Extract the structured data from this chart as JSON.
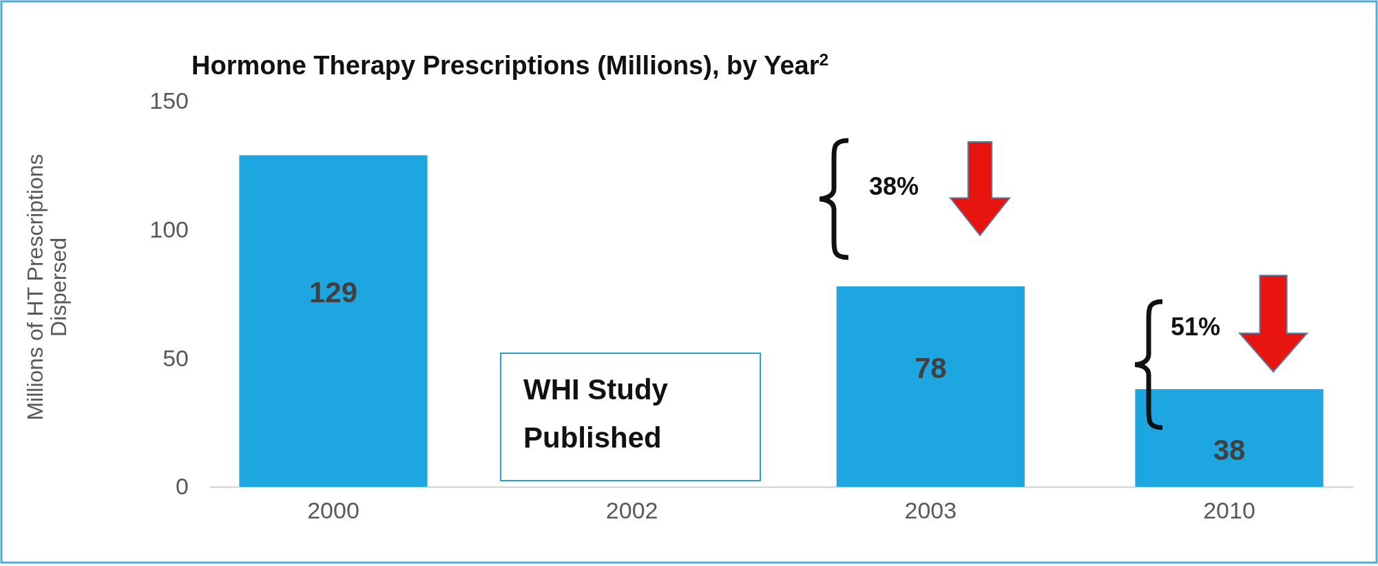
{
  "chart_data": {
    "type": "bar",
    "title": "Hormone Therapy Prescriptions (Millions), by Year$^{2}$",
    "ylabel": "Millions  of HT Prescriptions Dispersed",
    "categories": [
      "2000",
      "2002",
      "2003",
      "2010"
    ],
    "values": [
      129,
      null,
      78,
      38
    ],
    "color": "#1ea6e0",
    "ylim": [
      0,
      150
    ],
    "yticks": [
      0,
      50,
      100,
      150
    ],
    "grid": false,
    "data_labels": true,
    "annotations": [
      "38%",
      "51%",
      "WHI Study Published"
    ]
  }
}
